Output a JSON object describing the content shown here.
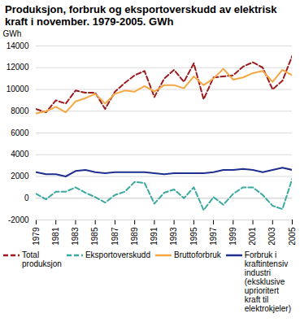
{
  "chart_data": {
    "type": "line",
    "title": "Produksjon, forbruk og eksportoverskudd av elektrisk kraft i november. 1979-2005. GWh",
    "y_label": "GWh",
    "x": [
      1979,
      1980,
      1981,
      1982,
      1983,
      1984,
      1985,
      1986,
      1987,
      1988,
      1989,
      1990,
      1991,
      1992,
      1993,
      1994,
      1995,
      1996,
      1997,
      1998,
      1999,
      2000,
      2001,
      2002,
      2003,
      2004,
      2005
    ],
    "xlim": [
      1979,
      2005
    ],
    "xticks": [
      1979,
      1981,
      1983,
      1985,
      1987,
      1989,
      1991,
      1993,
      1995,
      1997,
      1999,
      2001,
      2003,
      2005
    ],
    "ylim": [
      -2000,
      14000
    ],
    "yticks": [
      -2000,
      0,
      2000,
      4000,
      6000,
      8000,
      10000,
      12000,
      14000
    ],
    "grid": true,
    "legend": "bottom",
    "series": [
      {
        "name": "Total produksjon",
        "color": "#9b1b1e",
        "line_style": "dashed",
        "values": [
          8200,
          7900,
          9000,
          8700,
          9900,
          9700,
          9700,
          8200,
          9800,
          10600,
          11300,
          11700,
          9300,
          11000,
          11800,
          10700,
          12400,
          9100,
          11100,
          11200,
          11300,
          12100,
          12500,
          12000,
          10000,
          10800,
          13100
        ]
      },
      {
        "name": "Eksportoverskudd",
        "color": "#3aa99f",
        "line_style": "dashed",
        "values": [
          400,
          -100,
          600,
          600,
          1000,
          500,
          100,
          -400,
          300,
          600,
          1500,
          1400,
          -500,
          500,
          800,
          0,
          1000,
          -1100,
          100,
          -600,
          400,
          1000,
          1000,
          300,
          -700,
          -1000,
          1800
        ]
      },
      {
        "name": "Bruttoforbruk",
        "color": "#f5a742",
        "line_style": "solid",
        "values": [
          7800,
          8000,
          8400,
          7900,
          8900,
          9200,
          9600,
          8700,
          9600,
          9900,
          9800,
          10300,
          9800,
          10400,
          10400,
          10100,
          11200,
          10400,
          11000,
          11900,
          10900,
          11100,
          11500,
          11700,
          10700,
          11800,
          11300
        ]
      },
      {
        "name": "Forbruk i kraftintensiv industri (eksklusive uprioritert kraft til elektrokjeler)",
        "color": "#1f2f8f",
        "line_style": "solid",
        "values": [
          2400,
          2200,
          2200,
          2000,
          2500,
          2600,
          2400,
          2300,
          2400,
          2400,
          2400,
          2400,
          2300,
          2200,
          2300,
          2300,
          2300,
          2300,
          2400,
          2600,
          2600,
          2700,
          2600,
          2400,
          2600,
          2800,
          2600
        ]
      }
    ]
  }
}
